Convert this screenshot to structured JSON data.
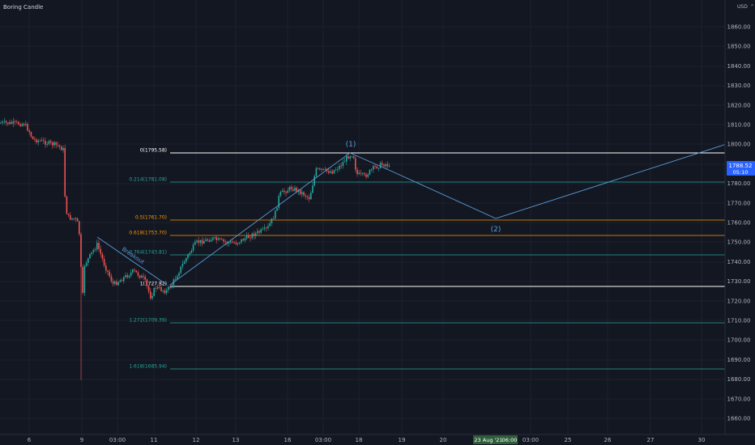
{
  "header": {
    "title": "Boring Candle",
    "currency": "USD",
    "currency_icon": "menu-caret-icon"
  },
  "price_axis": {
    "labels": [
      "1860.00",
      "1850.00",
      "1840.00",
      "1830.00",
      "1820.00",
      "1810.00",
      "1800.00",
      "1790.00",
      "1780.00",
      "1770.00",
      "1760.00",
      "1750.00",
      "1740.00",
      "1730.00",
      "1720.00",
      "1710.00",
      "1700.00",
      "1690.00",
      "1680.00",
      "1670.00",
      "1660.00"
    ],
    "current_price": "1788.52",
    "countdown": "05:10",
    "current_price_color": "#2962ff"
  },
  "time_axis": {
    "labels": [
      "6",
      "9",
      "03:00",
      "11",
      "12",
      "13",
      "16",
      "03:00",
      "18",
      "19",
      "20",
      "06:00",
      "03:00",
      "25",
      "26",
      "27",
      "30"
    ],
    "highlight_date": "23 Aug '21",
    "highlight_color": "#2e5e39"
  },
  "fibonacci": [
    {
      "label": "0(1795.58)",
      "color": "#ffffff"
    },
    {
      "label": "0.214(1781.08)",
      "color": "#26a69a"
    },
    {
      "label": "0.5(1761.70)",
      "color": "#ff9800"
    },
    {
      "label": "0.618(1753.70)",
      "color": "#ff9800"
    },
    {
      "label": "0.764(1743.81)",
      "color": "#26a69a"
    },
    {
      "label": "1(1727.82)",
      "color": "#ffffff"
    },
    {
      "label": "1.272(1709.39)",
      "color": "#26a69a"
    },
    {
      "label": "1.618(1685.94)",
      "color": "#26a69a"
    }
  ],
  "annotations": {
    "wave1": "(1)",
    "wave2": "(2)",
    "breakout": "Breakout"
  },
  "colors": {
    "background": "#131722",
    "up": "#26a69a",
    "down": "#ef5350",
    "drawing": "#5b9bd5"
  }
}
